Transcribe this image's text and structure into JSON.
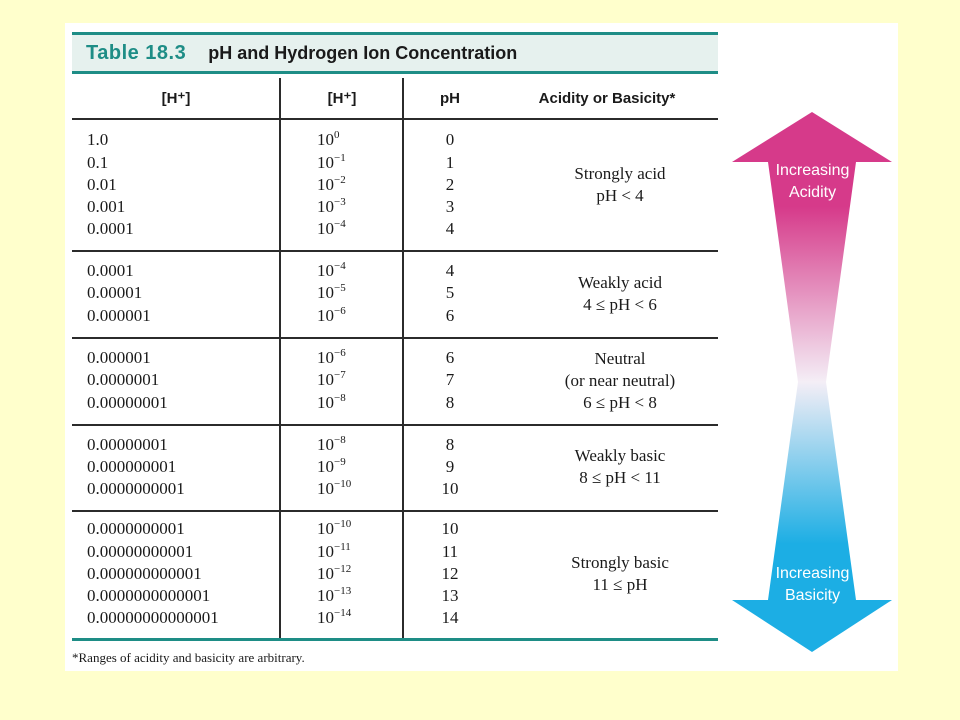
{
  "table": {
    "label": "Table 18.3",
    "title": "pH and Hydrogen Ion Concentration",
    "headers": [
      "[H⁺]",
      "[H⁺]",
      "pH",
      "Acidity or Basicity*"
    ],
    "footnote": "*Ranges of acidity and basicity are arbitrary."
  },
  "groups": [
    {
      "description": [
        "Strongly acid",
        "pH < 4"
      ],
      "rows": [
        {
          "conc": "1.0",
          "base": "10",
          "exp": "0",
          "ph": "0"
        },
        {
          "conc": "0.1",
          "base": "10",
          "exp": "−1",
          "ph": "1"
        },
        {
          "conc": "0.01",
          "base": "10",
          "exp": "−2",
          "ph": "2"
        },
        {
          "conc": "0.001",
          "base": "10",
          "exp": "−3",
          "ph": "3"
        },
        {
          "conc": "0.0001",
          "base": "10",
          "exp": "−4",
          "ph": "4"
        }
      ]
    },
    {
      "description": [
        "Weakly acid",
        "4 ≤ pH < 6"
      ],
      "rows": [
        {
          "conc": "0.0001",
          "base": "10",
          "exp": "−4",
          "ph": "4"
        },
        {
          "conc": "0.00001",
          "base": "10",
          "exp": "−5",
          "ph": "5"
        },
        {
          "conc": "0.000001",
          "base": "10",
          "exp": "−6",
          "ph": "6"
        }
      ]
    },
    {
      "description": [
        "Neutral",
        "(or near neutral)",
        "6 ≤ pH < 8"
      ],
      "rows": [
        {
          "conc": "0.000001",
          "base": "10",
          "exp": "−6",
          "ph": "6"
        },
        {
          "conc": "0.0000001",
          "base": "10",
          "exp": "−7",
          "ph": "7"
        },
        {
          "conc": "0.00000001",
          "base": "10",
          "exp": "−8",
          "ph": "8"
        }
      ]
    },
    {
      "description": [
        "Weakly basic",
        "8 ≤ pH < 11"
      ],
      "rows": [
        {
          "conc": "0.00000001",
          "base": "10",
          "exp": "−8",
          "ph": "8"
        },
        {
          "conc": "0.000000001",
          "base": "10",
          "exp": "−9",
          "ph": "9"
        },
        {
          "conc": "0.0000000001",
          "base": "10",
          "exp": "−10",
          "ph": "10"
        }
      ]
    },
    {
      "description": [
        "Strongly basic",
        "11 ≤ pH"
      ],
      "rows": [
        {
          "conc": "0.0000000001",
          "base": "10",
          "exp": "−10",
          "ph": "10"
        },
        {
          "conc": "0.00000000001",
          "base": "10",
          "exp": "−11",
          "ph": "11"
        },
        {
          "conc": "0.000000000001",
          "base": "10",
          "exp": "−12",
          "ph": "12"
        },
        {
          "conc": "0.0000000000001",
          "base": "10",
          "exp": "−13",
          "ph": "13"
        },
        {
          "conc": "0.00000000000001",
          "base": "10",
          "exp": "−14",
          "ph": "14"
        }
      ]
    }
  ],
  "arrow": {
    "top_label": [
      "Increasing",
      "Acidity"
    ],
    "bottom_label": [
      "Increasing",
      "Basicity"
    ],
    "colors": {
      "acid": "#D63A8A",
      "base": "#1CAEE4",
      "middle": "#F4EEF6"
    }
  },
  "colors": {
    "background": "#FFFFCC",
    "accent": "#1E8D86"
  }
}
